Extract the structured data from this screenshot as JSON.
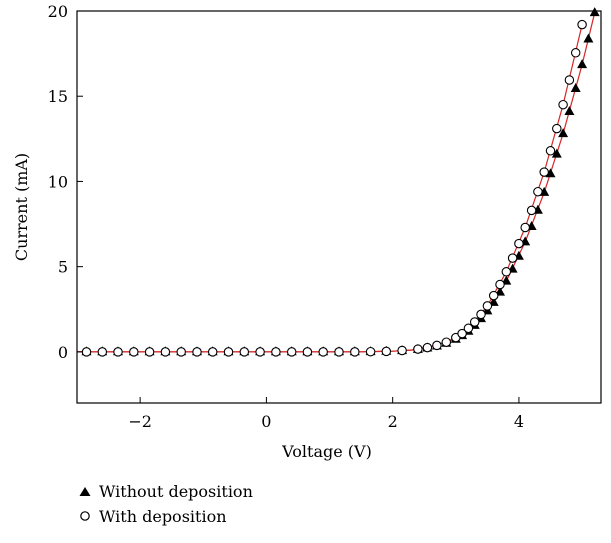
{
  "chart_data": {
    "type": "scatter",
    "xlabel": "Voltage (V)",
    "ylabel": "Current (mA)",
    "xlim": [
      -3,
      5.3
    ],
    "ylim": [
      -3,
      20
    ],
    "xticks": [
      -2,
      0,
      2,
      4
    ],
    "xtick_labels": [
      "−2",
      "0",
      "2",
      "4"
    ],
    "yticks": [
      0,
      5,
      10,
      15,
      20
    ],
    "ytick_labels": [
      "0",
      "5",
      "10",
      "15",
      "20"
    ],
    "grid": false,
    "legend_position": "bottom-left, below plot",
    "fit_color": "#d62728",
    "series": [
      {
        "name": "Without deposition",
        "marker": "filled-triangle",
        "color": "#000000",
        "x": [
          -2.85,
          -2.6,
          -2.35,
          -2.1,
          -1.85,
          -1.6,
          -1.35,
          -1.1,
          -0.85,
          -0.6,
          -0.35,
          -0.1,
          0.15,
          0.4,
          0.65,
          0.9,
          1.15,
          1.4,
          1.65,
          1.9,
          2.15,
          2.4,
          2.55,
          2.7,
          2.85,
          3.0,
          3.1,
          3.2,
          3.3,
          3.4,
          3.5,
          3.6,
          3.7,
          3.8,
          3.9,
          4.0,
          4.1,
          4.2,
          4.3,
          4.4,
          4.5,
          4.6,
          4.7,
          4.8,
          4.9,
          5.0,
          5.1,
          5.2
        ],
        "y": [
          0,
          0,
          0,
          0,
          0,
          0,
          0,
          0,
          0,
          0,
          0,
          0,
          0,
          0,
          0,
          0,
          0,
          0,
          0.01,
          0.03,
          0.07,
          0.14,
          0.22,
          0.34,
          0.5,
          0.73,
          0.95,
          1.2,
          1.55,
          1.95,
          2.4,
          2.9,
          3.5,
          4.15,
          4.85,
          5.6,
          6.45,
          7.35,
          8.3,
          9.35,
          10.45,
          11.6,
          12.8,
          14.1,
          15.45,
          16.85,
          18.35,
          19.9
        ]
      },
      {
        "name": "With deposition",
        "marker": "open-circle",
        "color": "#000000",
        "x": [
          -2.85,
          -2.6,
          -2.35,
          -2.1,
          -1.85,
          -1.6,
          -1.35,
          -1.1,
          -0.85,
          -0.6,
          -0.35,
          -0.1,
          0.15,
          0.4,
          0.65,
          0.9,
          1.15,
          1.4,
          1.65,
          1.9,
          2.15,
          2.4,
          2.55,
          2.7,
          2.85,
          3.0,
          3.1,
          3.2,
          3.3,
          3.4,
          3.5,
          3.6,
          3.7,
          3.8,
          3.9,
          4.0,
          4.1,
          4.2,
          4.3,
          4.4,
          4.5,
          4.6,
          4.7,
          4.8,
          4.9,
          5.0
        ],
        "y": [
          0,
          0,
          0,
          0,
          0,
          0,
          0,
          0,
          0,
          0,
          0,
          0,
          0,
          0,
          0,
          0,
          0,
          0,
          0.01,
          0.03,
          0.08,
          0.16,
          0.25,
          0.38,
          0.57,
          0.84,
          1.07,
          1.38,
          1.75,
          2.2,
          2.7,
          3.3,
          3.95,
          4.7,
          5.5,
          6.35,
          7.3,
          8.3,
          9.4,
          10.55,
          11.8,
          13.1,
          14.5,
          15.95,
          17.55,
          19.2
        ]
      }
    ],
    "fit_curves": [
      {
        "x": [
          -3,
          -2,
          -1,
          0,
          1,
          1.5,
          2,
          2.3,
          2.6,
          2.9,
          3.2,
          3.5,
          3.8,
          4.1,
          4.4,
          4.7,
          5.0,
          5.2
        ],
        "y": [
          0,
          0,
          0,
          0,
          0,
          0.002,
          0.04,
          0.1,
          0.28,
          0.6,
          1.2,
          2.4,
          4.15,
          6.45,
          9.35,
          12.8,
          16.85,
          19.9
        ]
      },
      {
        "x": [
          -3,
          -2,
          -1,
          0,
          1,
          1.5,
          2,
          2.3,
          2.6,
          2.9,
          3.2,
          3.5,
          3.8,
          4.1,
          4.4,
          4.7,
          5.0
        ],
        "y": [
          0,
          0,
          0,
          0,
          0,
          0.002,
          0.04,
          0.11,
          0.3,
          0.66,
          1.38,
          2.7,
          4.7,
          7.3,
          10.55,
          14.5,
          19.2
        ]
      }
    ]
  }
}
